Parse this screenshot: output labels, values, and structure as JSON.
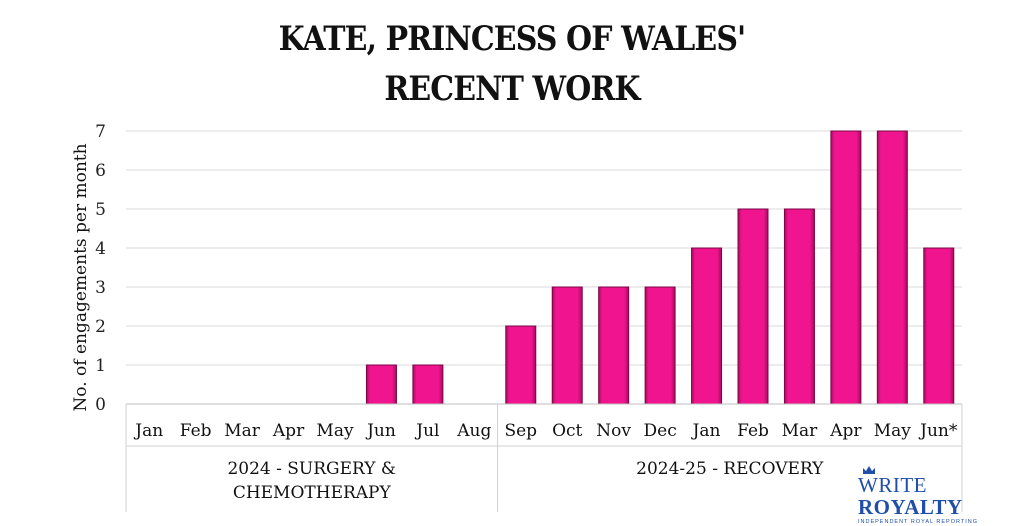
{
  "chart_data": {
    "type": "bar",
    "title_lines": [
      "KATE, PRINCESS OF WALES'",
      "RECENT WORK"
    ],
    "ylabel": "No. of engagements per month",
    "xlabel": "",
    "ylim": [
      0,
      7
    ],
    "y_ticks": [
      0,
      1,
      2,
      3,
      4,
      5,
      6,
      7
    ],
    "grid": true,
    "bar_color": "#f0158f",
    "categories": [
      "Jan",
      "Feb",
      "Mar",
      "Apr",
      "May",
      "Jun",
      "Jul",
      "Aug",
      "Sep",
      "Oct",
      "Nov",
      "Dec",
      "Jan",
      "Feb",
      "Mar",
      "Apr",
      "May",
      "Jun*"
    ],
    "values": [
      0,
      0,
      0,
      0,
      0,
      1,
      1,
      0,
      2,
      3,
      3,
      3,
      4,
      5,
      5,
      7,
      7,
      4
    ],
    "groups": [
      {
        "label_lines": [
          "2024 - SURGERY &",
          "CHEMOTHERAPY"
        ],
        "count": 8
      },
      {
        "label_lines": [
          "2024-25 - RECOVERY"
        ],
        "count": 10
      }
    ]
  },
  "logo": {
    "name_part1": "WRITE",
    "name_part2": "ROYALTY",
    "tagline": "INDEPENDENT ROYAL REPORTING"
  }
}
